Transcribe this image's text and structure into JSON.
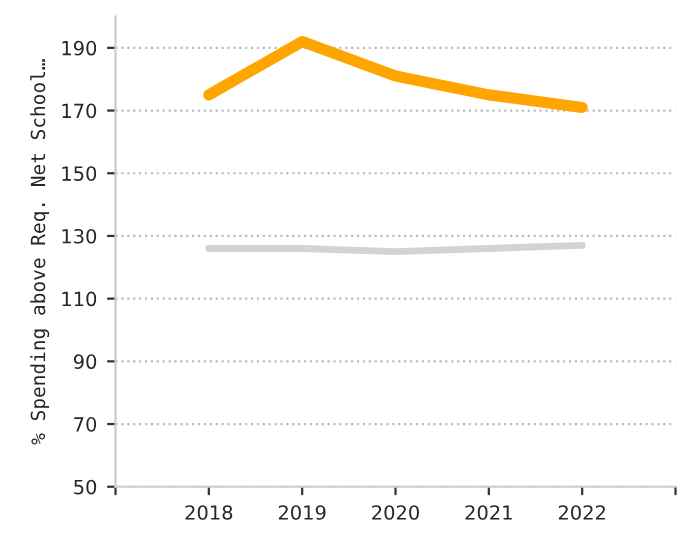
{
  "chart_data": {
    "type": "line",
    "ylabel": "% Spending above Req. Net School…",
    "x": [
      2018,
      2019,
      2020,
      2021,
      2022
    ],
    "series": [
      {
        "color": "#ffa500",
        "values": [
          175,
          192,
          181,
          175,
          171
        ]
      },
      {
        "color": "#d3d3d3",
        "values": [
          126,
          126,
          125,
          126,
          127
        ]
      }
    ],
    "xlim": [
      2017,
      2023
    ],
    "xticks": [
      {
        "value": 2017,
        "label": null
      },
      2018,
      2019,
      2020,
      2021,
      2022,
      {
        "value": 2023,
        "label": null
      }
    ],
    "ylim": [
      50,
      200
    ],
    "yticks": [
      50,
      70,
      90,
      110,
      130,
      150,
      170,
      190
    ],
    "grid": "y",
    "marker": "none",
    "line_style": "solid"
  }
}
